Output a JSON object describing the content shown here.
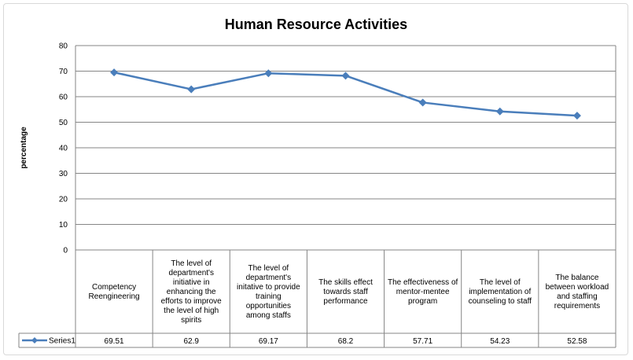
{
  "chart_data": {
    "type": "line",
    "title": "Human Resource Activities",
    "xlabel": "",
    "ylabel": "percentage",
    "ylim": [
      0,
      80
    ],
    "yticks": [
      0,
      10,
      20,
      30,
      40,
      50,
      60,
      70,
      80
    ],
    "grid": true,
    "legend": "data-table-left",
    "categories": [
      "Competency Reengineering",
      "The level of department's initiative in enhancing the efforts to improve the level of high spirits",
      "The level of department's initative  to provide training opportunities among staffs",
      "The skills effect towards staff performance",
      "The effectiveness of mentor-mentee program",
      "The level of implementation of counseling to staff",
      "The balance between workload and staffing requirements"
    ],
    "series": [
      {
        "name": "Series1",
        "values": [
          69.51,
          62.9,
          69.17,
          68.2,
          57.71,
          54.23,
          52.58
        ],
        "labels": [
          "69.51",
          "62.9",
          "69.17",
          "68.2",
          "57.71",
          "54.23",
          "52.58"
        ],
        "color": "#4a7ebb"
      }
    ]
  }
}
